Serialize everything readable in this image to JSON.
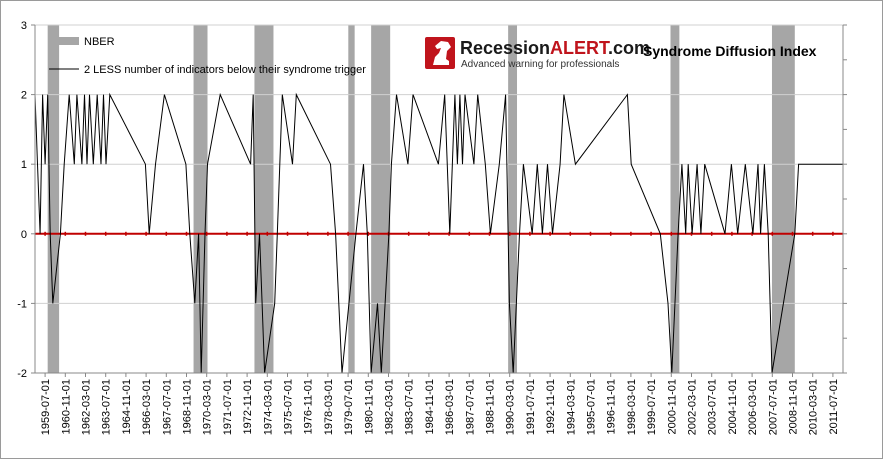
{
  "chart_data": {
    "type": "line",
    "title": "Syndrome Diffusion Index",
    "logo": {
      "name": "Recession",
      "accent": "ALERT",
      "suffix": ".com",
      "tagline": "Advanced warning for professionals"
    },
    "xlabel": "",
    "ylabel": "",
    "ylim": [
      -2,
      3
    ],
    "yticks": [
      "-2",
      "-1",
      "0",
      "1",
      "2",
      "3"
    ],
    "grid": true,
    "legend_position": "top-left",
    "x_start": "1959-07-01",
    "x_end": "2012-08-01",
    "xtick_labels": [
      "1959-07-01",
      "1960-11-01",
      "1962-03-01",
      "1963-07-01",
      "1964-11-01",
      "1966-03-01",
      "1967-07-01",
      "1968-11-01",
      "1970-03-01",
      "1971-07-01",
      "1972-11-01",
      "1974-03-01",
      "1975-07-01",
      "1976-11-01",
      "1978-03-01",
      "1979-07-01",
      "1980-11-01",
      "1982-03-01",
      "1983-07-01",
      "1984-11-01",
      "1986-03-01",
      "1987-07-01",
      "1988-11-01",
      "1990-03-01",
      "1991-07-01",
      "1992-11-01",
      "1994-03-01",
      "1995-07-01",
      "1996-11-01",
      "1998-03-01",
      "1999-07-01",
      "2000-11-01",
      "2002-03-01",
      "2003-07-01",
      "2004-11-01",
      "2006-03-01",
      "2007-07-01",
      "2008-11-01",
      "2010-03-01",
      "2011-07-01"
    ],
    "series": [
      {
        "name": "NBER",
        "kind": "recession-bands",
        "color": "#a6a6a6",
        "periods": [
          [
            "1960-05-01",
            "1961-02-01"
          ],
          [
            "1969-12-01",
            "1970-11-01"
          ],
          [
            "1973-12-01",
            "1975-03-01"
          ],
          [
            "1980-02-01",
            "1980-07-01"
          ],
          [
            "1981-08-01",
            "1982-11-01"
          ],
          [
            "1990-08-01",
            "1991-03-01"
          ],
          [
            "2001-04-01",
            "2001-11-01"
          ],
          [
            "2007-12-01",
            "2009-06-01"
          ]
        ]
      },
      {
        "name": "2 LESS number of indicators below their syndrome trigger",
        "kind": "step-line",
        "color": "#000000",
        "points": [
          [
            "1959-07-01",
            2
          ],
          [
            "1959-09-01",
            1
          ],
          [
            "1959-11-01",
            0
          ],
          [
            "1960-01-01",
            2
          ],
          [
            "1960-03-01",
            1
          ],
          [
            "1960-05-01",
            2
          ],
          [
            "1960-07-01",
            0
          ],
          [
            "1960-09-01",
            -1
          ],
          [
            "1961-03-01",
            0
          ],
          [
            "1961-06-01",
            1
          ],
          [
            "1961-10-01",
            2
          ],
          [
            "1962-02-01",
            1
          ],
          [
            "1962-04-01",
            2
          ],
          [
            "1962-08-01",
            1
          ],
          [
            "1962-10-01",
            2
          ],
          [
            "1962-12-01",
            1
          ],
          [
            "1963-02-01",
            2
          ],
          [
            "1963-05-01",
            1
          ],
          [
            "1963-08-01",
            2
          ],
          [
            "1963-11-01",
            1
          ],
          [
            "1964-01-01",
            2
          ],
          [
            "1964-03-01",
            1
          ],
          [
            "1964-06-01",
            2
          ],
          [
            "1966-10-01",
            1
          ],
          [
            "1967-01-01",
            0
          ],
          [
            "1967-06-01",
            1
          ],
          [
            "1968-01-01",
            2
          ],
          [
            "1969-06-01",
            1
          ],
          [
            "1969-09-01",
            0
          ],
          [
            "1970-01-01",
            -1
          ],
          [
            "1970-04-01",
            0
          ],
          [
            "1970-06-01",
            -2
          ],
          [
            "1970-09-01",
            0
          ],
          [
            "1970-11-01",
            1
          ],
          [
            "1971-09-01",
            2
          ],
          [
            "1973-09-01",
            1
          ],
          [
            "1973-11-01",
            2
          ],
          [
            "1974-01-01",
            -1
          ],
          [
            "1974-04-01",
            0
          ],
          [
            "1974-06-01",
            -1
          ],
          [
            "1974-08-01",
            -2
          ],
          [
            "1975-04-01",
            -1
          ],
          [
            "1975-06-01",
            0
          ],
          [
            "1975-08-01",
            1
          ],
          [
            "1975-10-01",
            2
          ],
          [
            "1976-06-01",
            1
          ],
          [
            "1976-09-01",
            2
          ],
          [
            "1978-12-01",
            1
          ],
          [
            "1979-04-01",
            0
          ],
          [
            "1979-09-01",
            -2
          ],
          [
            "1980-08-01",
            0
          ],
          [
            "1981-02-01",
            1
          ],
          [
            "1981-05-01",
            0
          ],
          [
            "1981-08-01",
            -2
          ],
          [
            "1982-01-01",
            -1
          ],
          [
            "1982-04-01",
            -2
          ],
          [
            "1982-10-01",
            0
          ],
          [
            "1982-12-01",
            1
          ],
          [
            "1983-04-01",
            2
          ],
          [
            "1984-01-01",
            1
          ],
          [
            "1984-05-01",
            2
          ],
          [
            "1986-01-01",
            1
          ],
          [
            "1986-06-01",
            2
          ],
          [
            "1986-10-01",
            0
          ],
          [
            "1987-02-01",
            2
          ],
          [
            "1987-04-01",
            1
          ],
          [
            "1987-06-01",
            2
          ],
          [
            "1987-08-01",
            1
          ],
          [
            "1987-10-01",
            2
          ],
          [
            "1988-05-01",
            1
          ],
          [
            "1988-08-01",
            2
          ],
          [
            "1989-02-01",
            1
          ],
          [
            "1989-06-01",
            0
          ],
          [
            "1990-01-01",
            1
          ],
          [
            "1990-06-01",
            2
          ],
          [
            "1990-09-01",
            -1
          ],
          [
            "1990-12-01",
            -2
          ],
          [
            "1991-05-01",
            0
          ],
          [
            "1991-08-01",
            1
          ],
          [
            "1992-03-01",
            0
          ],
          [
            "1992-07-01",
            1
          ],
          [
            "1992-11-01",
            0
          ],
          [
            "1993-03-01",
            1
          ],
          [
            "1993-07-01",
            0
          ],
          [
            "1994-01-01",
            1
          ],
          [
            "1994-04-01",
            2
          ],
          [
            "1995-01-01",
            1
          ],
          [
            "1998-06-01",
            2
          ],
          [
            "1998-09-01",
            1
          ],
          [
            "2000-08-01",
            0
          ],
          [
            "2001-02-01",
            -1
          ],
          [
            "2001-05-01",
            -2
          ],
          [
            "2001-10-01",
            0
          ],
          [
            "2002-01-01",
            1
          ],
          [
            "2002-04-01",
            0
          ],
          [
            "2002-06-01",
            1
          ],
          [
            "2002-09-01",
            0
          ],
          [
            "2003-01-01",
            1
          ],
          [
            "2003-04-01",
            0
          ],
          [
            "2003-07-01",
            1
          ],
          [
            "2004-11-01",
            0
          ],
          [
            "2005-04-01",
            1
          ],
          [
            "2005-09-01",
            0
          ],
          [
            "2006-03-01",
            1
          ],
          [
            "2006-09-01",
            0
          ],
          [
            "2007-01-01",
            1
          ],
          [
            "2007-03-01",
            0
          ],
          [
            "2007-06-01",
            1
          ],
          [
            "2007-09-01",
            0
          ],
          [
            "2007-12-01",
            -2
          ],
          [
            "2009-06-01",
            0
          ],
          [
            "2009-09-01",
            1
          ],
          [
            "2012-08-01",
            1
          ]
        ]
      }
    ],
    "reference_line": {
      "value": 0,
      "color": "#c00000"
    }
  }
}
